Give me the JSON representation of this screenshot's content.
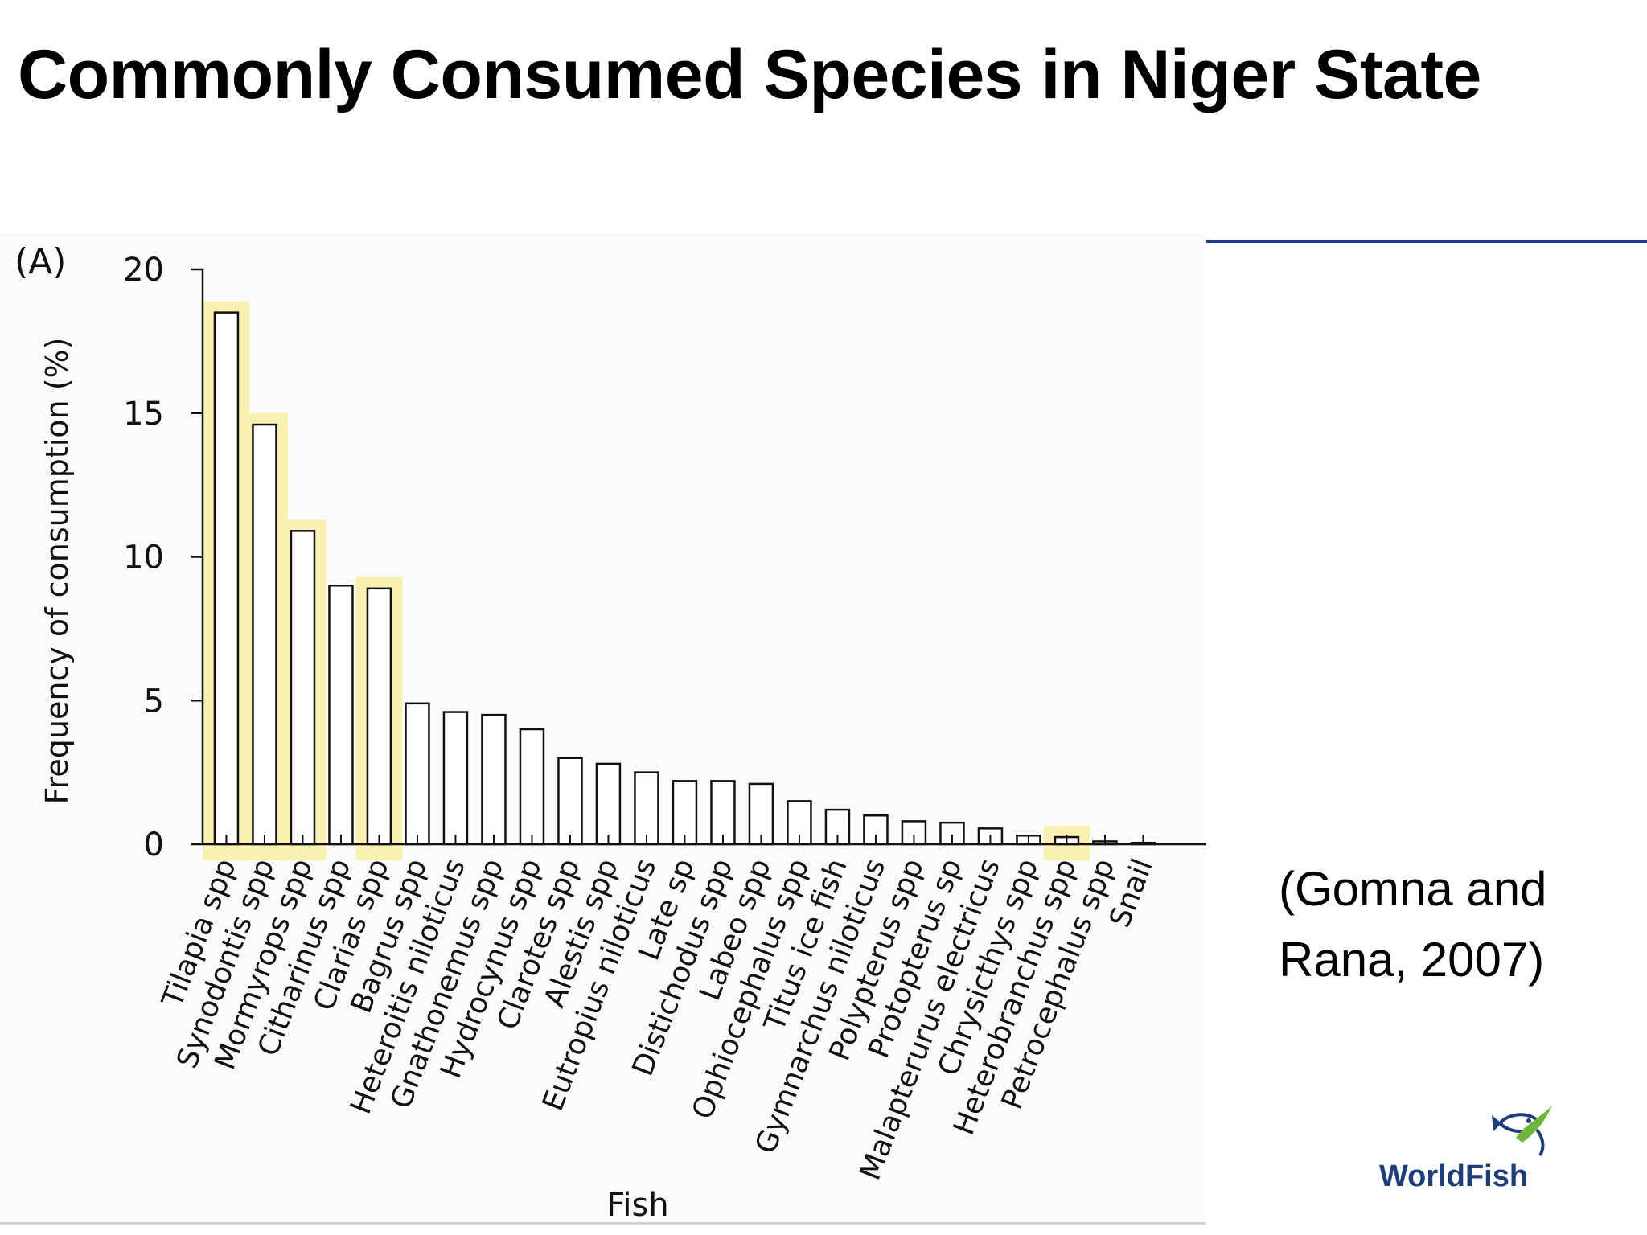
{
  "slide": {
    "title": "Commonly Consumed Species in Niger State",
    "citation_line1": "(Gomna and",
    "citation_line2": "Rana, 2007)",
    "logo_text": "WorldFish"
  },
  "colors": {
    "highlight": "#f9f1b1",
    "bar_fill": "#ffffff",
    "bar_stroke": "#111111",
    "rule": "#1d3f8a",
    "logo_text": "#1f3d7a",
    "logo_leaf": "#6fb43f"
  },
  "chart_data": {
    "type": "bar",
    "panel_label": "(A)",
    "title": "",
    "xlabel": "Fish",
    "ylabel": "Frequency of consumption (%)",
    "ylim": [
      0,
      20
    ],
    "yticks": [
      0,
      5,
      10,
      15,
      20
    ],
    "grid": false,
    "categories": [
      "Tilapia spp",
      "Synodontis spp",
      "Mormyrops spp",
      "Citharinus spp",
      "Clarias spp",
      "Bagrus spp",
      "Heteroitis niloticus",
      "Gnathonemus spp",
      "Hydrocynus spp",
      "Clarotes spp",
      "Alestis spp",
      "Eutropius niloticus",
      "Late sp",
      "Distichodus spp",
      "Labeo spp",
      "Ophiocephalus spp",
      "Titus ice fish",
      "Gymnarchus niloticus",
      "Polypterus spp",
      "Protopterus sp",
      "Malapterurus electricus",
      "Chrysicthys spp",
      "Heterobranchus spp",
      "Petrocephalus spp",
      "Snail"
    ],
    "values": [
      18.5,
      14.6,
      10.9,
      9.0,
      8.9,
      4.9,
      4.6,
      4.5,
      4.0,
      3.0,
      2.8,
      2.5,
      2.2,
      2.2,
      2.1,
      1.5,
      1.2,
      1.0,
      0.8,
      0.75,
      0.55,
      0.3,
      0.25,
      0.1,
      0.05
    ],
    "highlighted": [
      "Tilapia spp",
      "Synodontis spp",
      "Mormyrops spp",
      "Clarias spp",
      "Heterobranchus spp"
    ]
  }
}
